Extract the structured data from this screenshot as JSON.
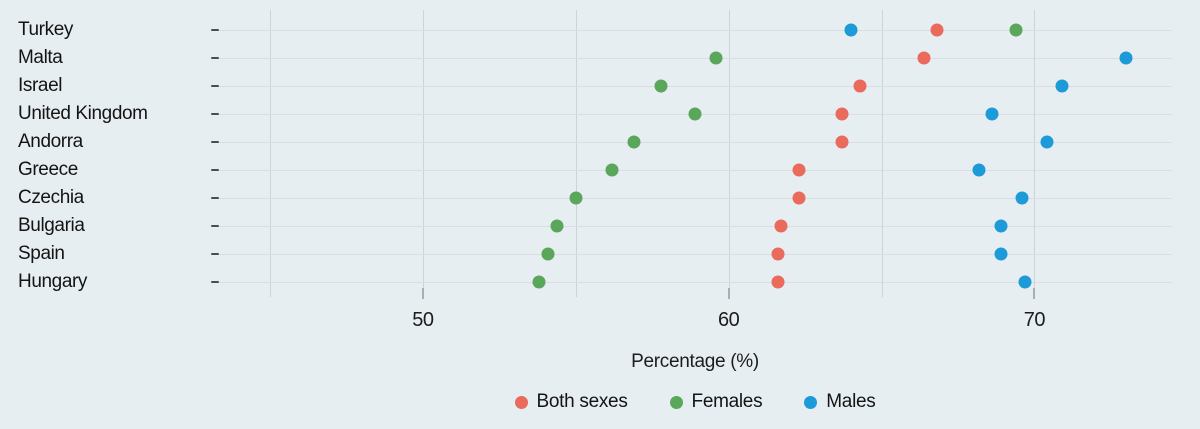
{
  "background_color": "#e7eef1",
  "chart_data": {
    "type": "scatter",
    "subtype": "horizontal-dot-plot",
    "title": "",
    "xlabel": "Percentage (%)",
    "ylabel": "",
    "grid": true,
    "legend_position": "bottom",
    "xlim": [
      43.3,
      74.5
    ],
    "x_gridlines": [
      45,
      50,
      55,
      60,
      65,
      70
    ],
    "x_ticks": [
      50,
      60,
      70
    ],
    "categories": [
      "Turkey",
      "Malta",
      "Israel",
      "United Kingdom",
      "Andorra",
      "Greece",
      "Czechia",
      "Bulgaria",
      "Spain",
      "Hungary"
    ],
    "series": [
      {
        "name": "Both sexes",
        "color": "#ea6a5c",
        "values": [
          66.8,
          66.4,
          64.3,
          63.7,
          63.7,
          62.3,
          62.3,
          61.7,
          61.6,
          61.6
        ]
      },
      {
        "name": "Females",
        "color": "#5aa65a",
        "values": [
          69.4,
          59.6,
          57.8,
          58.9,
          56.9,
          56.2,
          55.0,
          54.4,
          54.1,
          53.8
        ]
      },
      {
        "name": "Males",
        "color": "#1d9bd8",
        "values": [
          64.0,
          73.0,
          70.9,
          68.6,
          70.4,
          68.2,
          69.6,
          68.9,
          68.9,
          69.7
        ]
      }
    ]
  }
}
